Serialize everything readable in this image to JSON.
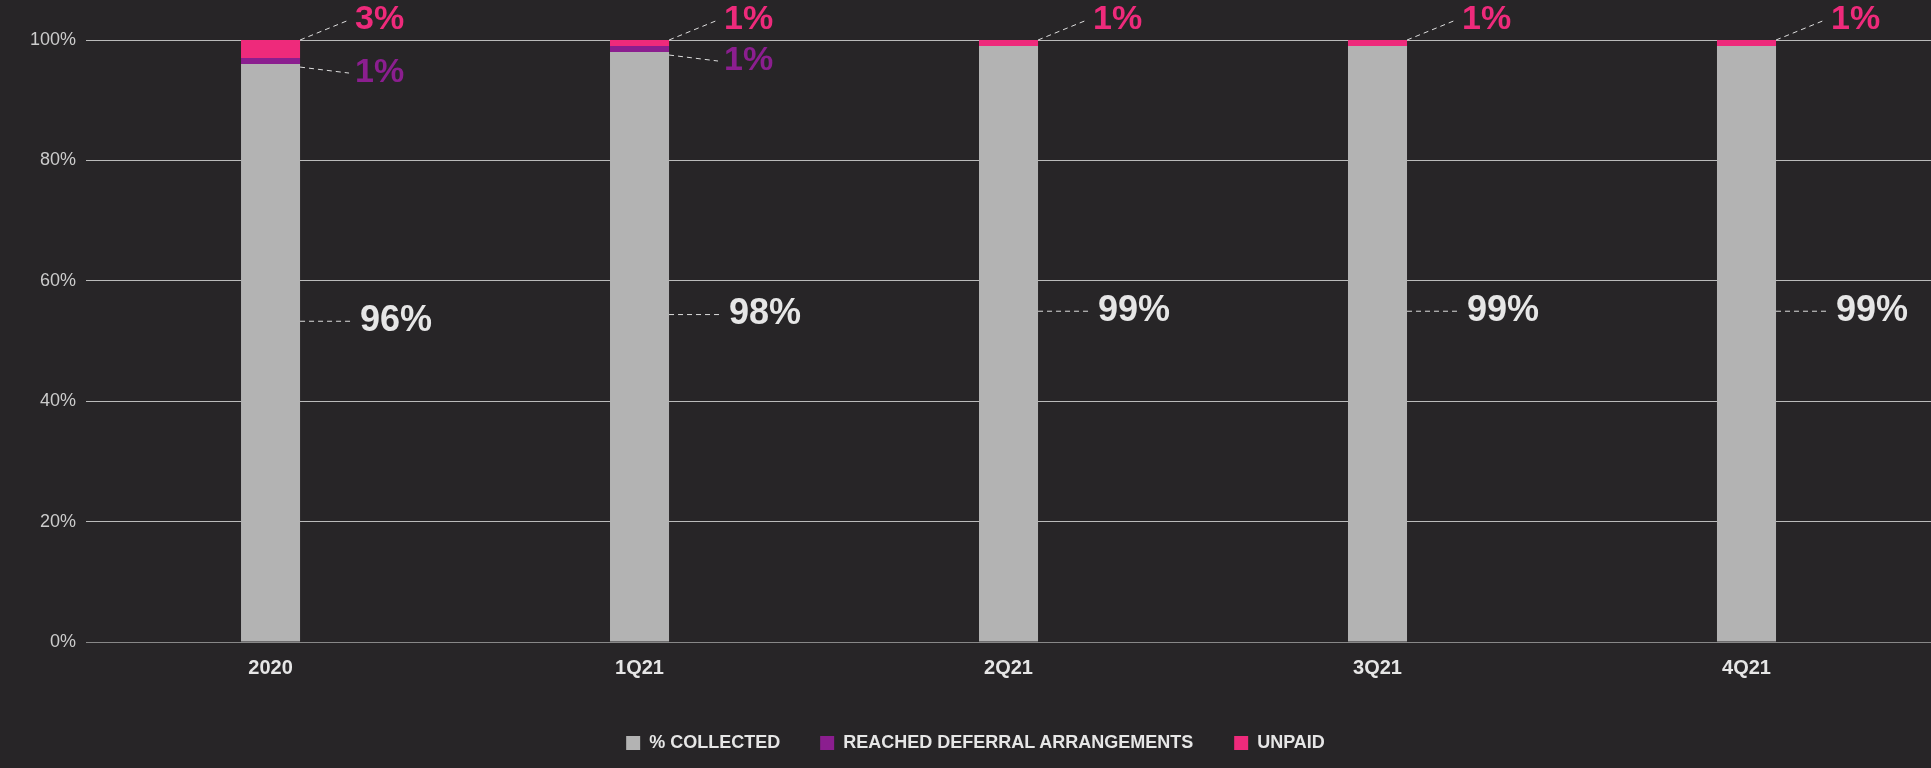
{
  "chart_data": {
    "type": "bar",
    "stacked": true,
    "categories": [
      "2020",
      "1Q21",
      "2Q21",
      "3Q21",
      "4Q21"
    ],
    "series": [
      {
        "name": "% COLLECTED",
        "color": "#b3b3b3",
        "values": [
          96,
          98,
          99,
          99,
          99
        ],
        "value_labels": [
          "96%",
          "98%",
          "99%",
          "99%",
          "99%"
        ]
      },
      {
        "name": "REACHED DEFERRAL ARRANGEMENTS",
        "color": "#8b1e8f",
        "values": [
          1,
          1,
          0,
          0,
          0
        ],
        "value_labels": [
          "1%",
          "1%",
          null,
          null,
          null
        ]
      },
      {
        "name": "UNPAID",
        "color": "#ee2a7b",
        "values": [
          3,
          1,
          1,
          1,
          1
        ],
        "value_labels": [
          "3%",
          "1%",
          "1%",
          "1%",
          "1%"
        ]
      }
    ],
    "ylim": [
      0,
      100
    ],
    "yticks": [
      {
        "value": 0,
        "label": "0%"
      },
      {
        "value": 20,
        "label": "20%"
      },
      {
        "value": 40,
        "label": "40%"
      },
      {
        "value": 60,
        "label": "60%"
      },
      {
        "value": 80,
        "label": "80%"
      },
      {
        "value": 100,
        "label": "100%"
      }
    ],
    "grid": "y",
    "legend": "bottom"
  }
}
